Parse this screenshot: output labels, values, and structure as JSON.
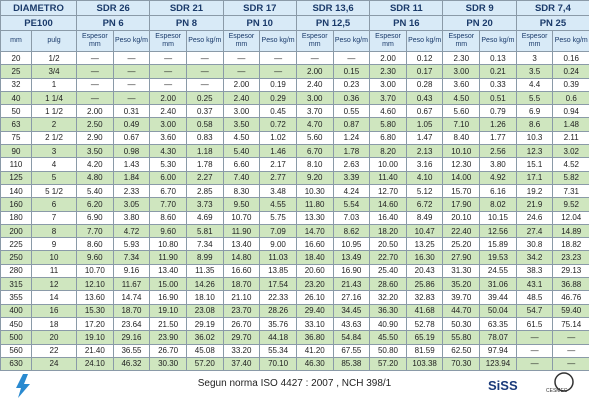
{
  "header": {
    "diametro": "DIAMETRO",
    "pe100": "PE100",
    "mm": "mm",
    "pulg": "pulg",
    "groups": [
      {
        "sdr": "SDR 26",
        "pn": "PN 6",
        "espesor": "Espesor mm",
        "peso": "Peso kg/m"
      },
      {
        "sdr": "SDR 21",
        "pn": "PN 8",
        "espesor": "Espesor mm",
        "peso": "Peso kg/m"
      },
      {
        "sdr": "SDR 17",
        "pn": "PN 10",
        "espesor": "Espesor mm",
        "peso": "Peso kg/m"
      },
      {
        "sdr": "SDR 13,6",
        "pn": "PN 12,5",
        "espesor": "Espesor mm",
        "peso": "Peso kg/m"
      },
      {
        "sdr": "SDR 11",
        "pn": "PN 16",
        "espesor": "Espesor mm",
        "peso": "Peso kg/m"
      },
      {
        "sdr": "SDR 9",
        "pn": "PN 20",
        "espesor": "Espesor mm",
        "peso": "Peso kg/m"
      },
      {
        "sdr": "SDR 7,4",
        "pn": "PN 25",
        "espesor": "Espesor mm",
        "peso": "Peso kg/m"
      }
    ]
  },
  "table": {
    "rows": [
      [
        "20",
        "1/2",
        "—",
        "—",
        "—",
        "—",
        "—",
        "—",
        "—",
        "—",
        "2.00",
        "0.12",
        "2.30",
        "0.13",
        "3",
        "0.16"
      ],
      [
        "25",
        "3/4",
        "—",
        "—",
        "—",
        "—",
        "—",
        "—",
        "2.00",
        "0.15",
        "2.30",
        "0.17",
        "3.00",
        "0.21",
        "3.5",
        "0.24"
      ],
      [
        "32",
        "1",
        "—",
        "—",
        "—",
        "—",
        "2.00",
        "0.19",
        "2.40",
        "0.23",
        "3.00",
        "0.28",
        "3.60",
        "0.33",
        "4.4",
        "0.39"
      ],
      [
        "40",
        "1 1/4",
        "—",
        "—",
        "2.00",
        "0.25",
        "2.40",
        "0.29",
        "3.00",
        "0.36",
        "3.70",
        "0.43",
        "4.50",
        "0.51",
        "5.5",
        "0.6"
      ],
      [
        "50",
        "1 1/2",
        "2.00",
        "0.31",
        "2.40",
        "0.37",
        "3.00",
        "0.45",
        "3.70",
        "0.55",
        "4.60",
        "0.67",
        "5.60",
        "0.79",
        "6.9",
        "0.94"
      ],
      [
        "63",
        "2",
        "2.50",
        "0.49",
        "3.00",
        "0.58",
        "3.50",
        "0.72",
        "4.70",
        "0.87",
        "5.80",
        "1.05",
        "7.10",
        "1.26",
        "8.6",
        "1.48"
      ],
      [
        "75",
        "2 1/2",
        "2.90",
        "0.67",
        "3.60",
        "0.83",
        "4.50",
        "1.02",
        "5.60",
        "1.24",
        "6.80",
        "1.47",
        "8.40",
        "1.77",
        "10.3",
        "2.11"
      ],
      [
        "90",
        "3",
        "3.50",
        "0.98",
        "4.30",
        "1.18",
        "5.40",
        "1.46",
        "6.70",
        "1.78",
        "8.20",
        "2.13",
        "10.10",
        "2.56",
        "12.3",
        "3.02"
      ],
      [
        "110",
        "4",
        "4.20",
        "1.43",
        "5.30",
        "1.78",
        "6.60",
        "2.17",
        "8.10",
        "2.63",
        "10.00",
        "3.16",
        "12.30",
        "3.80",
        "15.1",
        "4.52"
      ],
      [
        "125",
        "5",
        "4.80",
        "1.84",
        "6.00",
        "2.27",
        "7.40",
        "2.77",
        "9.20",
        "3.39",
        "11.40",
        "4.10",
        "14.00",
        "4.92",
        "17.1",
        "5.82"
      ],
      [
        "140",
        "5 1/2",
        "5.40",
        "2.33",
        "6.70",
        "2.85",
        "8.30",
        "3.48",
        "10.30",
        "4.24",
        "12.70",
        "5.12",
        "15.70",
        "6.16",
        "19.2",
        "7.31"
      ],
      [
        "160",
        "6",
        "6.20",
        "3.05",
        "7.70",
        "3.73",
        "9.50",
        "4.55",
        "11.80",
        "5.54",
        "14.60",
        "6.72",
        "17.90",
        "8.02",
        "21.9",
        "9.52"
      ],
      [
        "180",
        "7",
        "6.90",
        "3.80",
        "8.60",
        "4.69",
        "10.70",
        "5.75",
        "13.30",
        "7.03",
        "16.40",
        "8.49",
        "20.10",
        "10.15",
        "24.6",
        "12.04"
      ],
      [
        "200",
        "8",
        "7.70",
        "4.72",
        "9.60",
        "5.81",
        "11.90",
        "7.09",
        "14.70",
        "8.62",
        "18.20",
        "10.47",
        "22.40",
        "12.56",
        "27.4",
        "14.89"
      ],
      [
        "225",
        "9",
        "8.60",
        "5.93",
        "10.80",
        "7.34",
        "13.40",
        "9.00",
        "16.60",
        "10.95",
        "20.50",
        "13.25",
        "25.20",
        "15.89",
        "30.8",
        "18.82"
      ],
      [
        "250",
        "10",
        "9.60",
        "7.34",
        "11.90",
        "8.99",
        "14.80",
        "11.03",
        "18.40",
        "13.49",
        "22.70",
        "16.30",
        "27.90",
        "19.53",
        "34.2",
        "23.23"
      ],
      [
        "280",
        "11",
        "10.70",
        "9.16",
        "13.40",
        "11.35",
        "16.60",
        "13.85",
        "20.60",
        "16.90",
        "25.40",
        "20.43",
        "31.30",
        "24.55",
        "38.3",
        "29.13"
      ],
      [
        "315",
        "12",
        "12.10",
        "11.67",
        "15.00",
        "14.26",
        "18.70",
        "17.54",
        "23.20",
        "21.43",
        "28.60",
        "25.86",
        "35.20",
        "31.06",
        "43.1",
        "36.88"
      ],
      [
        "355",
        "14",
        "13.60",
        "14.74",
        "16.90",
        "18.10",
        "21.10",
        "22.33",
        "26.10",
        "27.16",
        "32.20",
        "32.83",
        "39.70",
        "39.44",
        "48.5",
        "46.76"
      ],
      [
        "400",
        "16",
        "15.30",
        "18.70",
        "19.10",
        "23.08",
        "23.70",
        "28.26",
        "29.40",
        "34.45",
        "36.30",
        "41.68",
        "44.70",
        "50.04",
        "54.7",
        "59.40"
      ],
      [
        "450",
        "18",
        "17.20",
        "23.64",
        "21.50",
        "29.19",
        "26.70",
        "35.76",
        "33.10",
        "43.63",
        "40.90",
        "52.78",
        "50.30",
        "63.35",
        "61.5",
        "75.14"
      ],
      [
        "500",
        "20",
        "19.10",
        "29.16",
        "23.90",
        "36.02",
        "29.70",
        "44.18",
        "36.80",
        "54.84",
        "45.50",
        "65.19",
        "55.80",
        "78.07",
        "—",
        "—"
      ],
      [
        "560",
        "22",
        "21.40",
        "36.55",
        "26.70",
        "45.08",
        "33.20",
        "55.34",
        "41.20",
        "67.55",
        "50.80",
        "81.59",
        "62.50",
        "97.94",
        "—",
        "—"
      ],
      [
        "630",
        "24",
        "24.10",
        "46.32",
        "30.30",
        "57.20",
        "37.40",
        "70.10",
        "46.30",
        "85.38",
        "57.20",
        "103.38",
        "70.30",
        "123.94",
        "—",
        "—"
      ]
    ]
  },
  "footer": {
    "norma": "Segun norma ISO 4427 : 2007 , NCH 398/1",
    "logo_right": "SiSS",
    "logo_cert": "CESMEC"
  }
}
